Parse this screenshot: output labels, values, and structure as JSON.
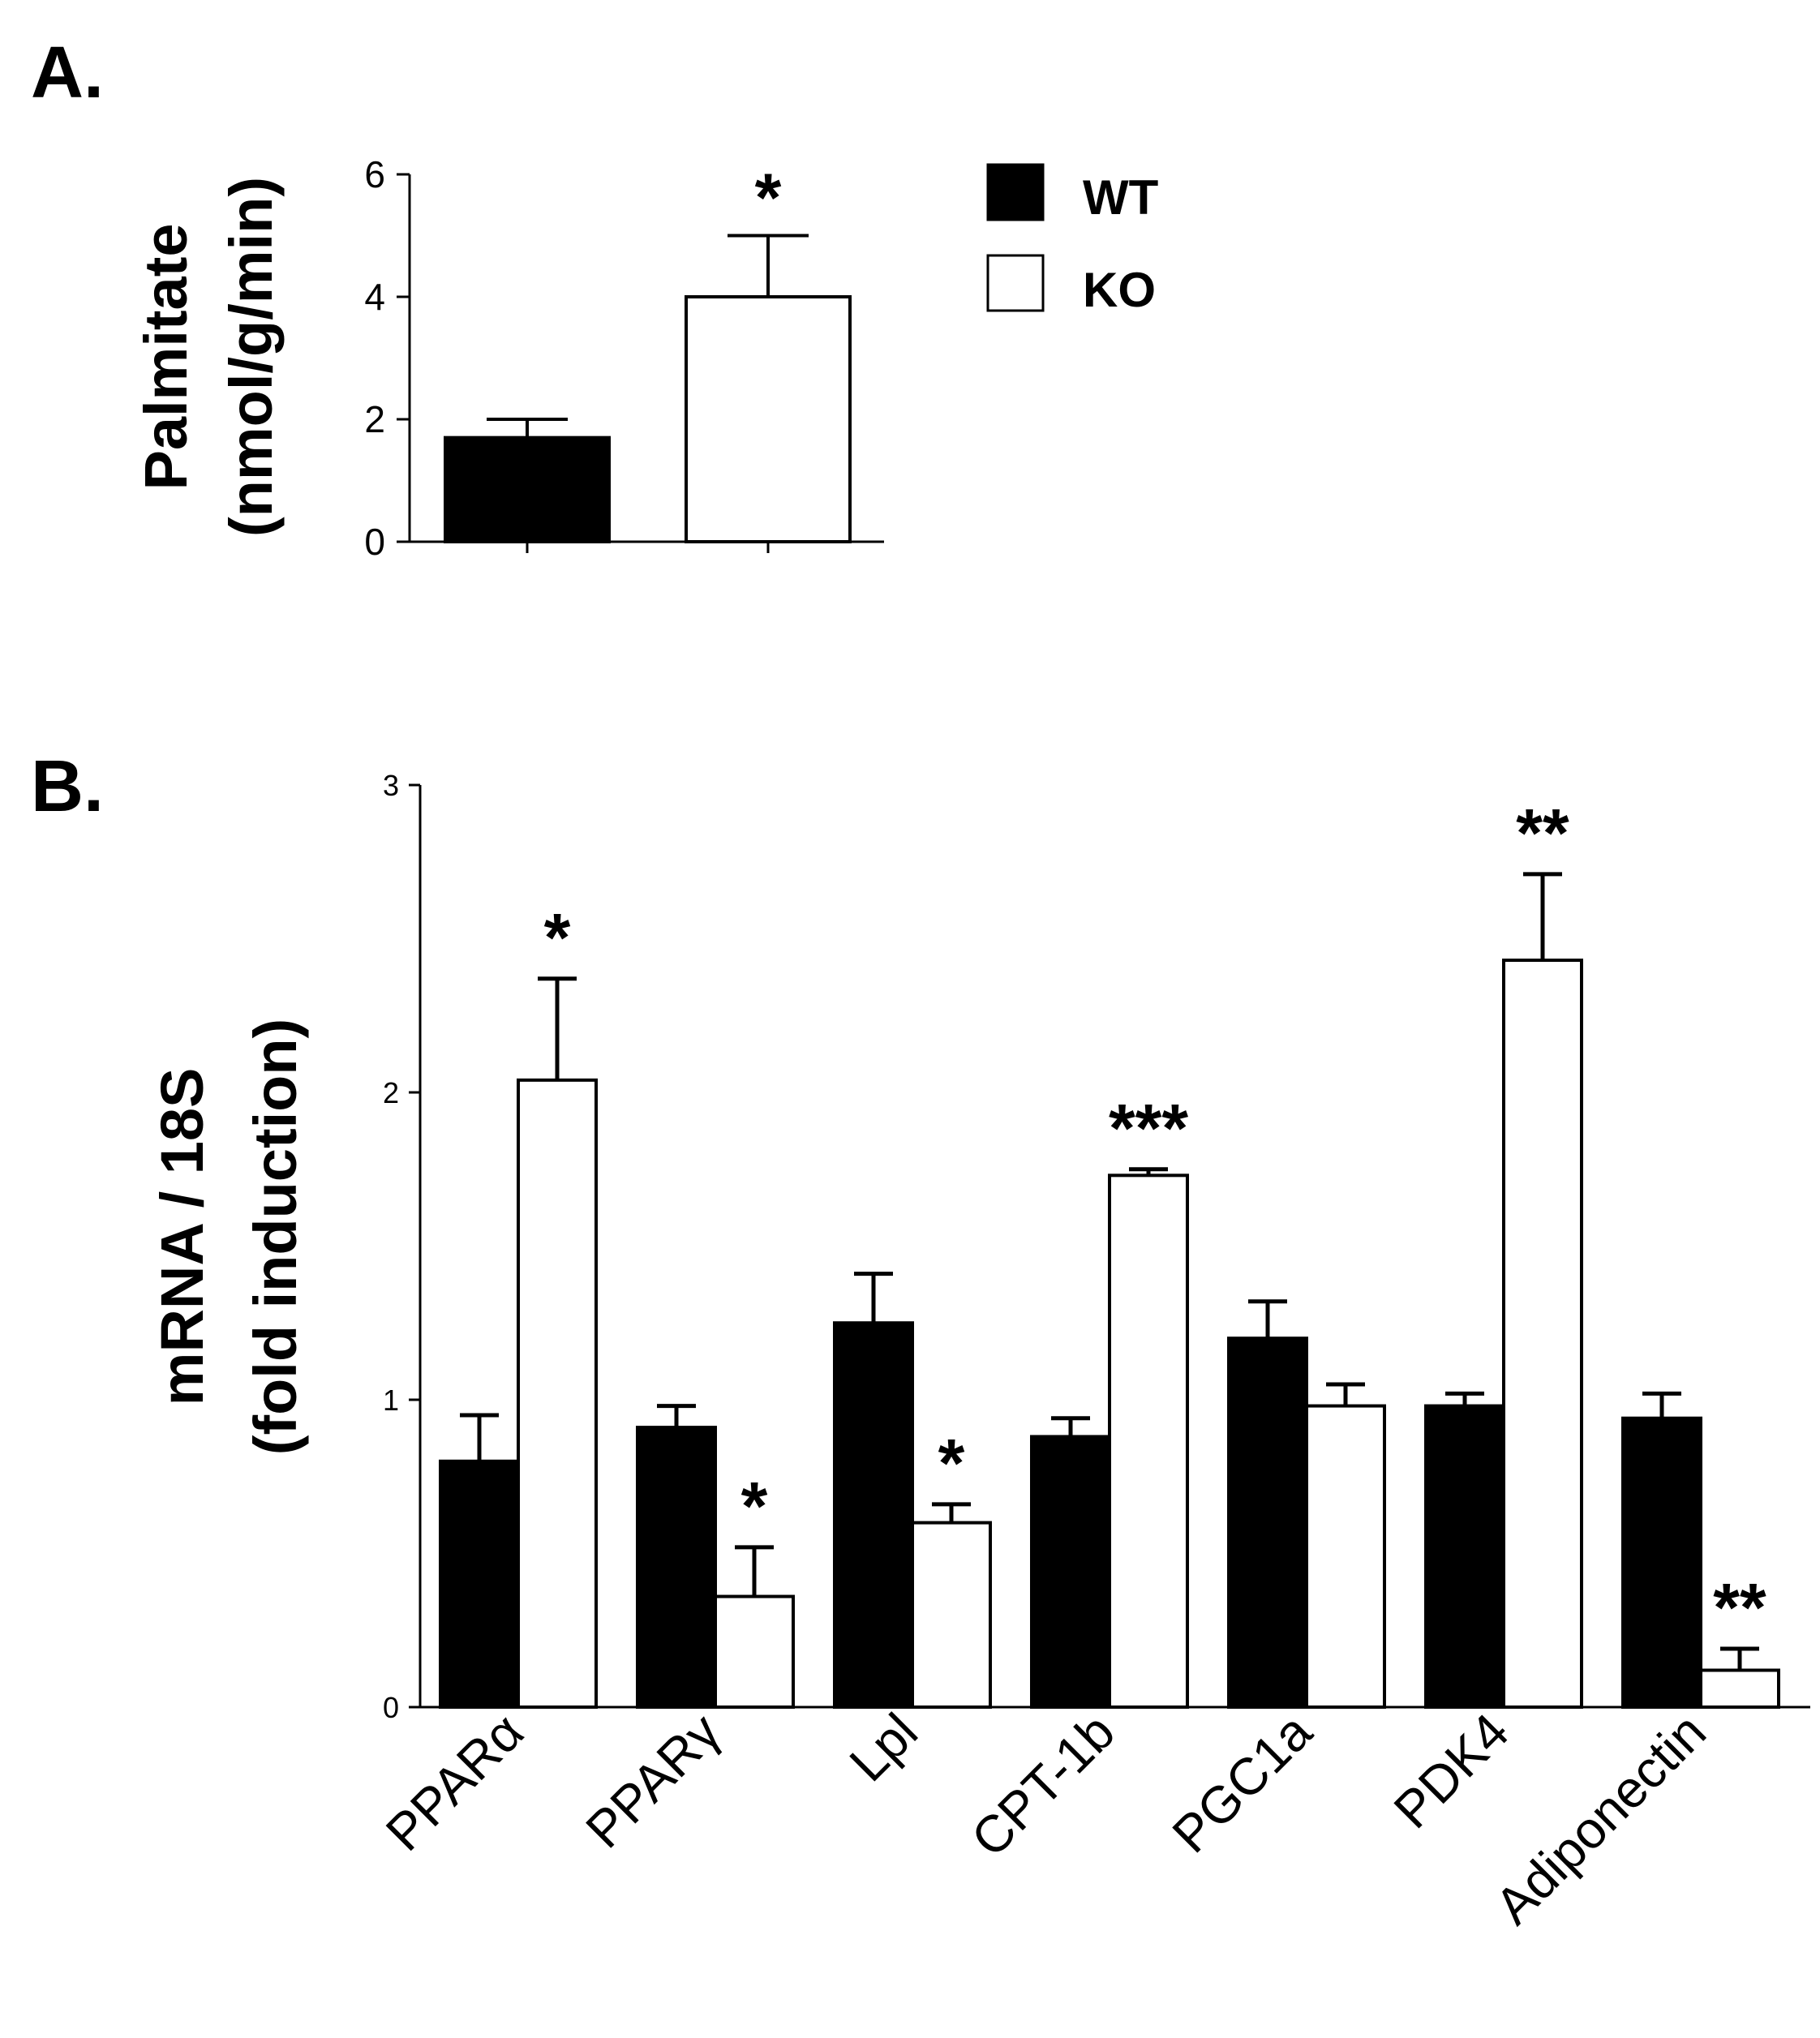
{
  "chart_data": [
    {
      "panel": "A.",
      "type": "bar",
      "ylabel_line1": "Palmitate",
      "ylabel_line2": "(nmol/g/min)",
      "ylim": [
        0,
        6
      ],
      "yticks": [
        0,
        2,
        4,
        6
      ],
      "ytick_labels": [
        "0",
        "2",
        "4",
        "6"
      ],
      "legend": [
        "WT",
        "KO"
      ],
      "series": [
        {
          "name": "WT",
          "values": [
            1.7
          ],
          "errors": [
            0.3
          ],
          "color": "#000000"
        },
        {
          "name": "KO",
          "values": [
            4.0
          ],
          "errors": [
            1.0
          ],
          "color": "#ffffff"
        }
      ],
      "significance": [
        "",
        "*"
      ]
    },
    {
      "panel": "B.",
      "type": "bar",
      "ylabel_line1": "mRNA / 18S",
      "ylabel_line2": "(fold induction)",
      "ylim": [
        0,
        3
      ],
      "yticks": [
        0,
        1,
        2,
        3
      ],
      "ytick_labels": [
        "0",
        "1",
        "2",
        "3"
      ],
      "categories": [
        "PPARα",
        "PPARγ",
        "Lpl",
        "CPT-1b",
        "PGC1a",
        "PDK4",
        "Adiponectin"
      ],
      "series": [
        {
          "name": "WT",
          "values": [
            0.8,
            0.91,
            1.25,
            0.88,
            1.2,
            0.98,
            0.94
          ],
          "errors": [
            0.15,
            0.07,
            0.16,
            0.06,
            0.12,
            0.04,
            0.08
          ],
          "color": "#000000"
        },
        {
          "name": "KO",
          "values": [
            2.04,
            0.36,
            0.6,
            1.73,
            0.98,
            2.43,
            0.12
          ],
          "errors": [
            0.33,
            0.16,
            0.06,
            0.02,
            0.07,
            0.28,
            0.07
          ],
          "color": "#ffffff"
        }
      ],
      "significance": [
        "*",
        "*",
        "*",
        "***",
        "",
        "**",
        "**"
      ]
    }
  ]
}
